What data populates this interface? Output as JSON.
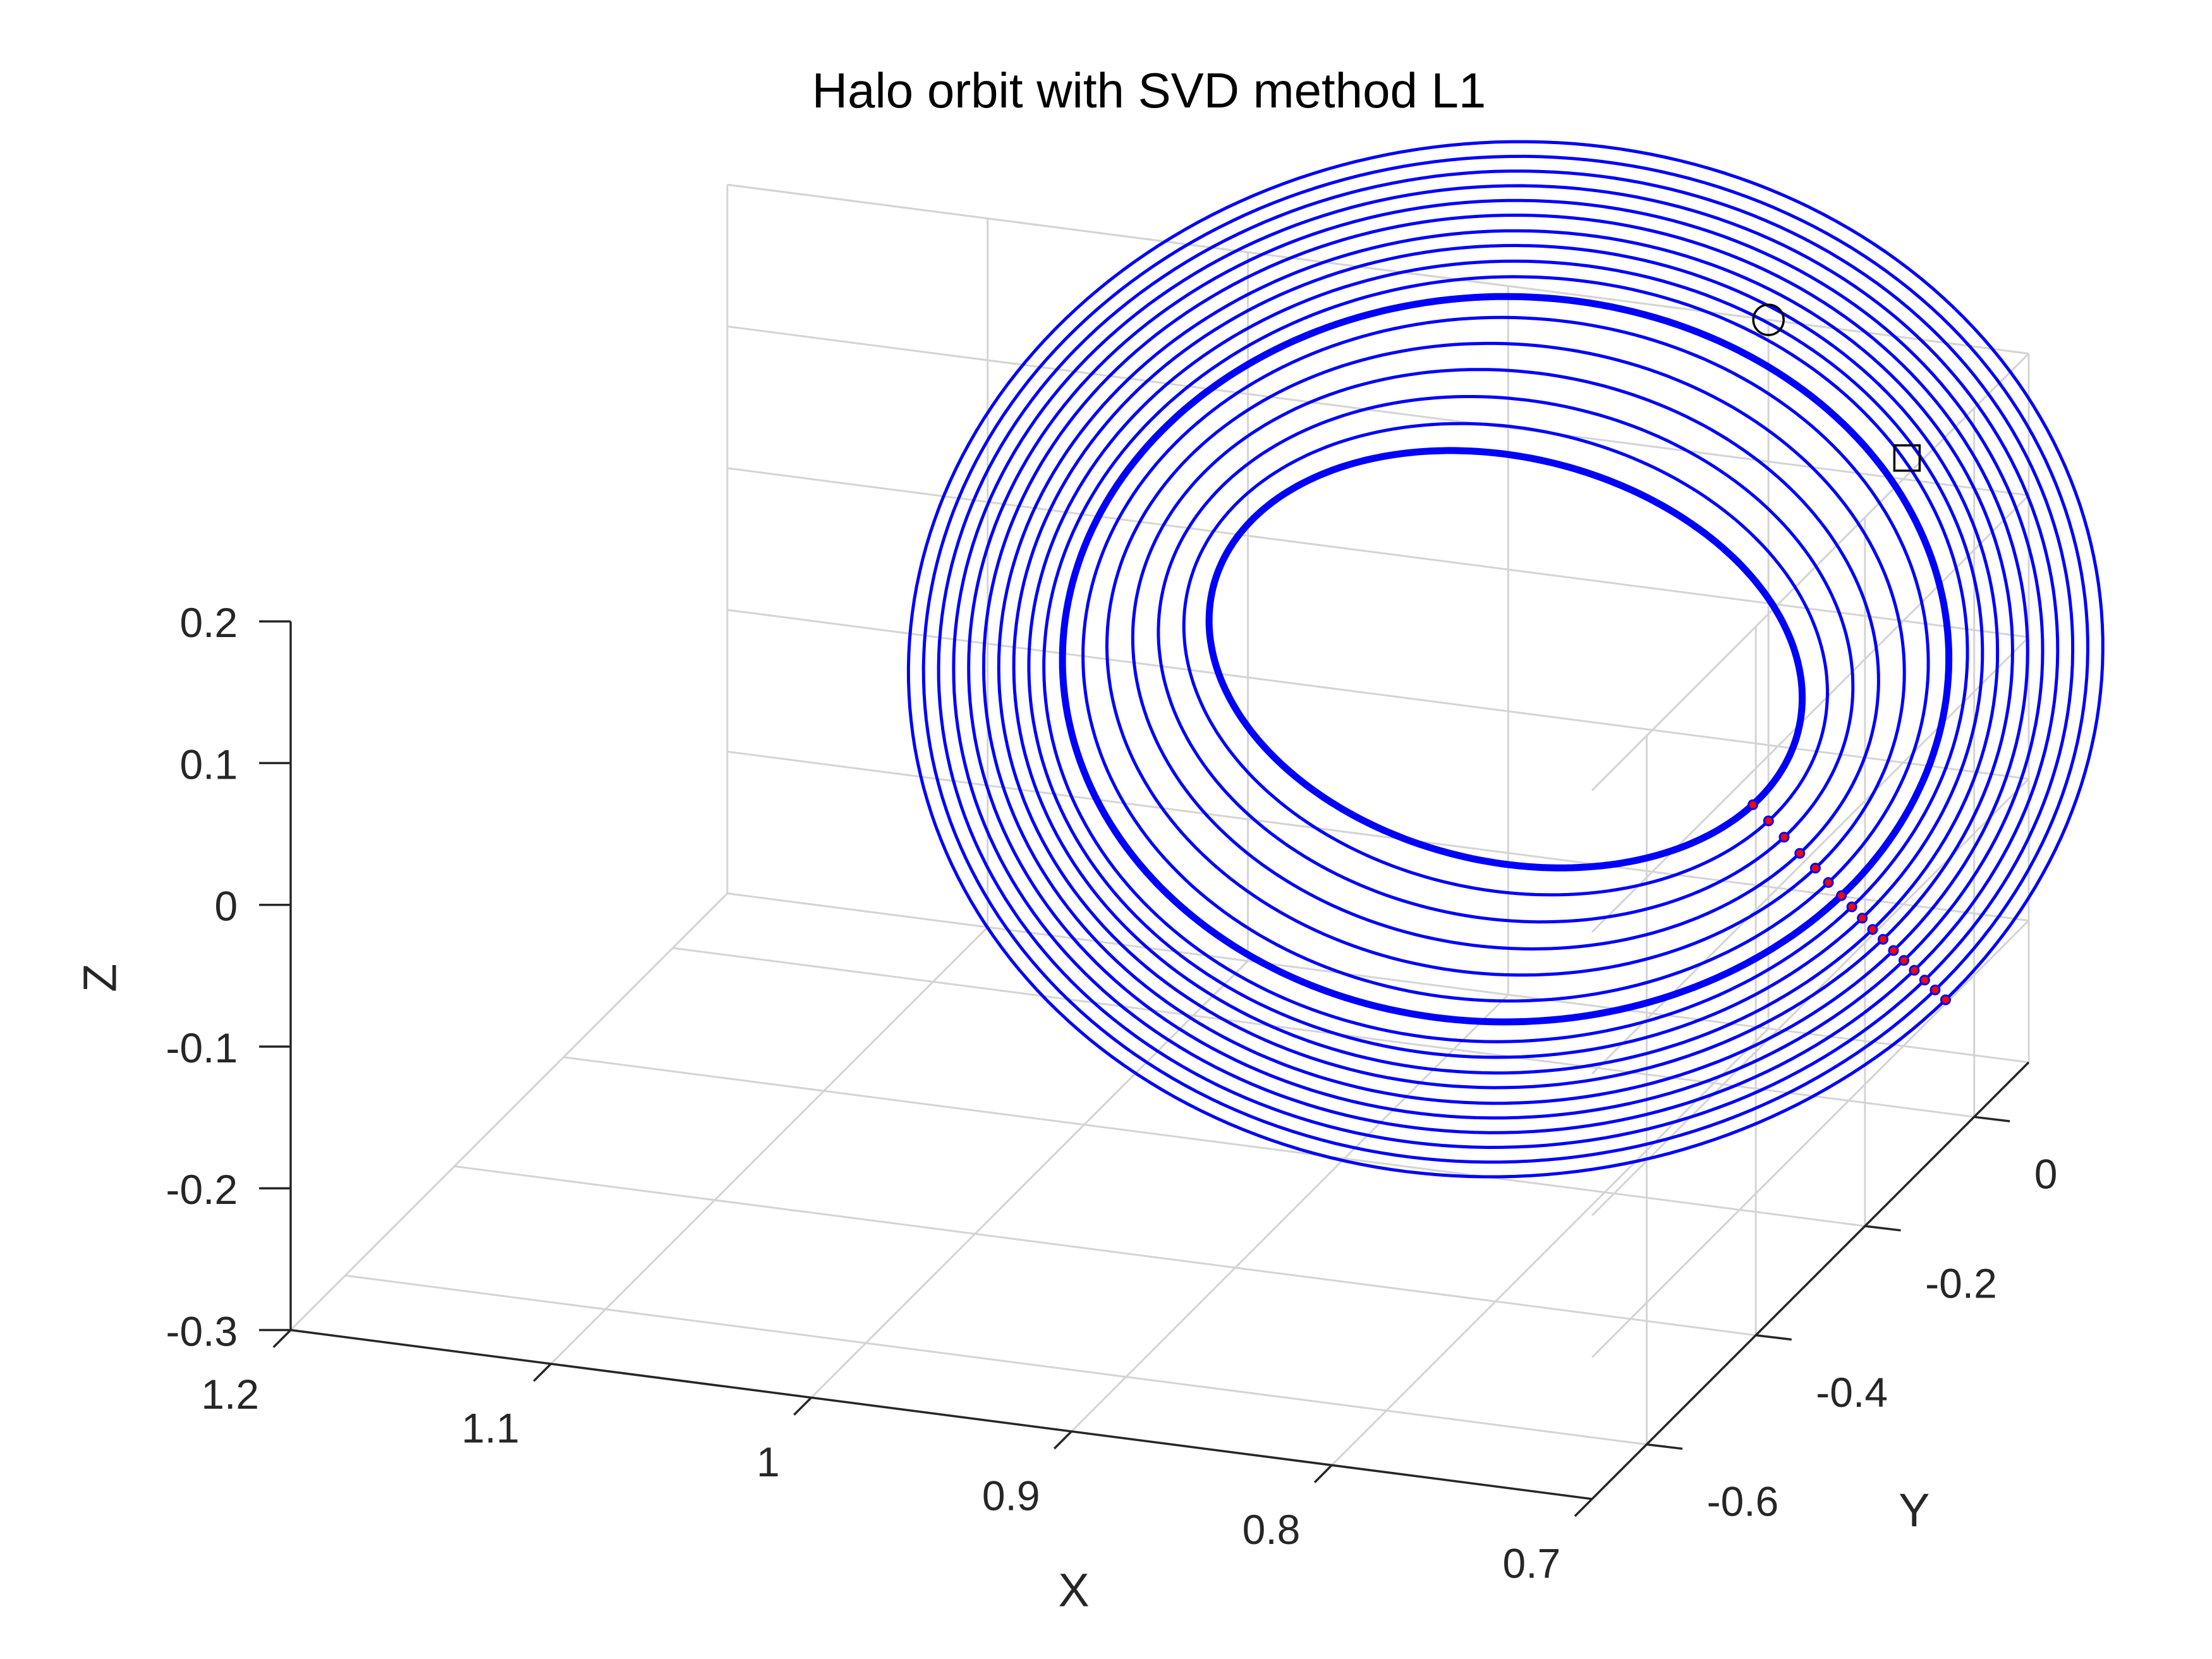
{
  "chart_data": {
    "type": "line3d",
    "title": "Halo orbit with SVD method L1",
    "xlabel": "X",
    "ylabel": "Y",
    "zlabel": "Z",
    "xlim": [
      0.7,
      1.2
    ],
    "ylim": [
      -0.7,
      0.1
    ],
    "zlim": [
      -0.3,
      0.2
    ],
    "xticks": [
      "1.2",
      "1.1",
      "1",
      "0.9",
      "0.8",
      "0.7"
    ],
    "yticks": [
      "-0.6",
      "-0.4",
      "-0.2",
      "0"
    ],
    "zticks": [
      "0.2",
      "0.1",
      "0",
      "-0.1",
      "-0.2",
      "-0.3"
    ],
    "grid": true,
    "colors": {
      "orbit": "#0000ff",
      "marker": "#ff0000",
      "axis": "#262626",
      "grid": "#d4d4d4"
    },
    "series": [
      {
        "family_member": 1,
        "center": [
          0.88,
          0.0
        ],
        "semi_x": 0.095,
        "semi_y": 0.3,
        "z_amp": 0.08,
        "emphasized": true
      },
      {
        "family_member": 2,
        "center": [
          0.88,
          0.0
        ],
        "semi_x": 0.101,
        "semi_y": 0.34,
        "z_amp": 0.09,
        "emphasized": false
      },
      {
        "family_member": 3,
        "center": [
          0.88,
          0.0
        ],
        "semi_x": 0.107,
        "semi_y": 0.38,
        "z_amp": 0.1,
        "emphasized": false
      },
      {
        "family_member": 4,
        "center": [
          0.88,
          0.0
        ],
        "semi_x": 0.113,
        "semi_y": 0.42,
        "z_amp": 0.11,
        "emphasized": false
      },
      {
        "family_member": 5,
        "center": [
          0.88,
          0.0
        ],
        "semi_x": 0.119,
        "semi_y": 0.46,
        "z_amp": 0.119,
        "emphasized": false
      },
      {
        "family_member": 6,
        "center": [
          0.88,
          0.0
        ],
        "semi_x": 0.124,
        "semi_y": 0.5,
        "z_amp": 0.128,
        "emphasized": false
      },
      {
        "family_member": 7,
        "center": [
          0.88,
          0.0
        ],
        "semi_x": 0.129,
        "semi_y": 0.53,
        "z_amp": 0.136,
        "emphasized": true
      },
      {
        "family_member": 8,
        "center": [
          0.88,
          0.0
        ],
        "semi_x": 0.133,
        "semi_y": 0.56,
        "z_amp": 0.143,
        "emphasized": false
      },
      {
        "family_member": 9,
        "center": [
          0.88,
          0.0
        ],
        "semi_x": 0.137,
        "semi_y": 0.58,
        "z_amp": 0.15,
        "emphasized": false
      },
      {
        "family_member": 10,
        "center": [
          0.88,
          0.0
        ],
        "semi_x": 0.141,
        "semi_y": 0.6,
        "z_amp": 0.157,
        "emphasized": false
      },
      {
        "family_member": 11,
        "center": [
          0.88,
          0.0
        ],
        "semi_x": 0.145,
        "semi_y": 0.62,
        "z_amp": 0.163,
        "emphasized": false
      },
      {
        "family_member": 12,
        "center": [
          0.88,
          0.0
        ],
        "semi_x": 0.149,
        "semi_y": 0.64,
        "z_amp": 0.17,
        "emphasized": false
      },
      {
        "family_member": 13,
        "center": [
          0.88,
          0.0
        ],
        "semi_x": 0.153,
        "semi_y": 0.66,
        "z_amp": 0.176,
        "emphasized": false
      },
      {
        "family_member": 14,
        "center": [
          0.88,
          0.0
        ],
        "semi_x": 0.157,
        "semi_y": 0.68,
        "z_amp": 0.182,
        "emphasized": false
      },
      {
        "family_member": 15,
        "center": [
          0.88,
          0.0
        ],
        "semi_x": 0.161,
        "semi_y": 0.7,
        "z_amp": 0.188,
        "emphasized": false
      },
      {
        "family_member": 16,
        "center": [
          0.88,
          0.0
        ],
        "semi_x": 0.165,
        "semi_y": 0.72,
        "z_amp": 0.194,
        "emphasized": false
      },
      {
        "family_member": 17,
        "center": [
          0.88,
          0.0
        ],
        "semi_x": 0.169,
        "semi_y": 0.74,
        "z_amp": 0.2,
        "emphasized": false
      }
    ],
    "markers": [
      {
        "type": "open-circle",
        "x": 0.8,
        "y": 0.1,
        "z": 0.2
      },
      {
        "type": "open-square",
        "x": 0.73,
        "y": 0.02,
        "z": 0.15
      }
    ]
  }
}
